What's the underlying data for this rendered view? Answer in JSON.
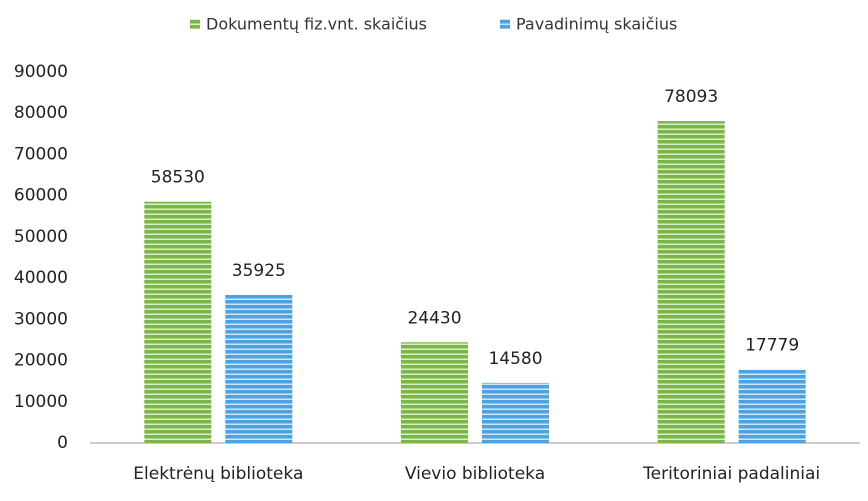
{
  "chart_data": {
    "type": "bar",
    "categories": [
      "Elektrėnų biblioteka",
      "Vievio biblioteka",
      "Teritoriniai padaliniai"
    ],
    "series": [
      {
        "name": "Dokumentų fiz.vnt. skaičius",
        "color": "#7ab648",
        "values": [
          58530,
          24430,
          78093
        ]
      },
      {
        "name": "Pavadinimų skaičius",
        "color": "#4ba3e3",
        "values": [
          35925,
          14580,
          17779
        ]
      }
    ],
    "ylim": [
      0,
      90000
    ],
    "yticks": [
      0,
      10000,
      20000,
      30000,
      40000,
      50000,
      60000,
      70000,
      80000,
      90000
    ],
    "grid": false,
    "legend": "top"
  }
}
